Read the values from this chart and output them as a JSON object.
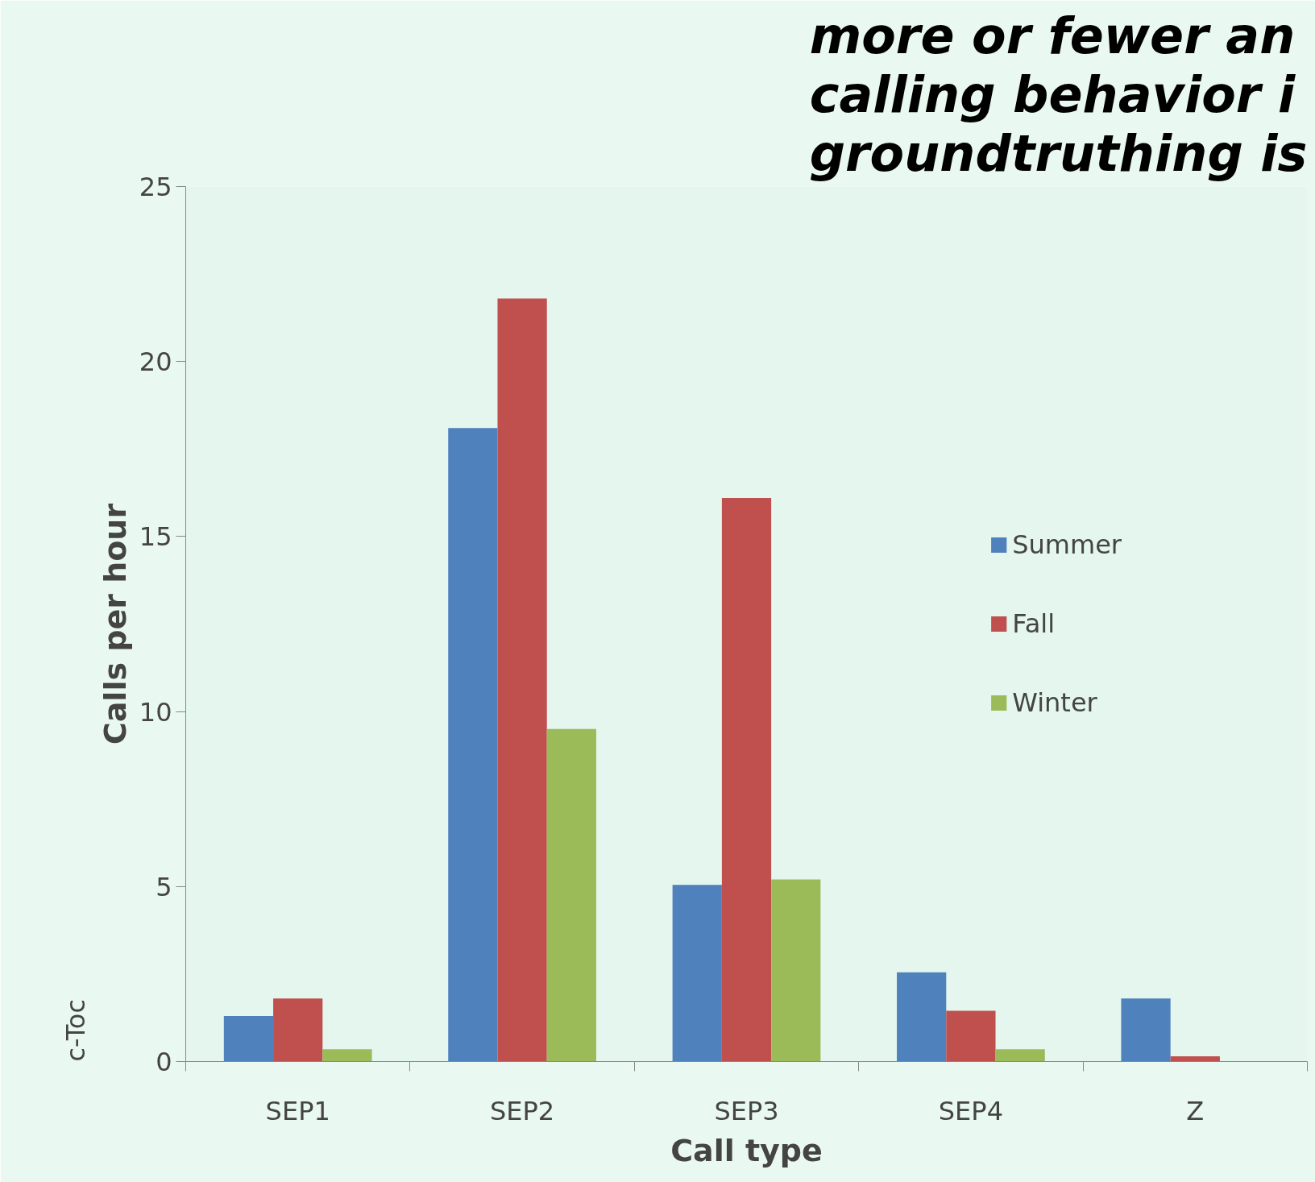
{
  "chart_data": {
    "type": "bar",
    "title": "more or fewer an\ncalling behavior i\ngroundtruthing is",
    "xlabel": "Call type",
    "ylabel": "Calls per hour",
    "categories": [
      "SEP1",
      "SEP2",
      "SEP3",
      "SEP4",
      "Z"
    ],
    "series": [
      {
        "name": "Summer",
        "color": "#4f81bd",
        "values": [
          1.3,
          18.1,
          5.05,
          2.55,
          1.8
        ]
      },
      {
        "name": "Fall",
        "color": "#c0504d",
        "values": [
          1.8,
          21.8,
          16.1,
          1.45,
          0.15
        ]
      },
      {
        "name": "Winter",
        "color": "#9bbb59",
        "values": [
          0.35,
          9.5,
          5.2,
          0.35,
          null
        ]
      }
    ],
    "ylim": [
      0,
      25
    ],
    "yticks": [
      0,
      5,
      10,
      15,
      20,
      25
    ],
    "grid": false,
    "legend": "right",
    "annotations": [
      "c-Toc"
    ]
  }
}
